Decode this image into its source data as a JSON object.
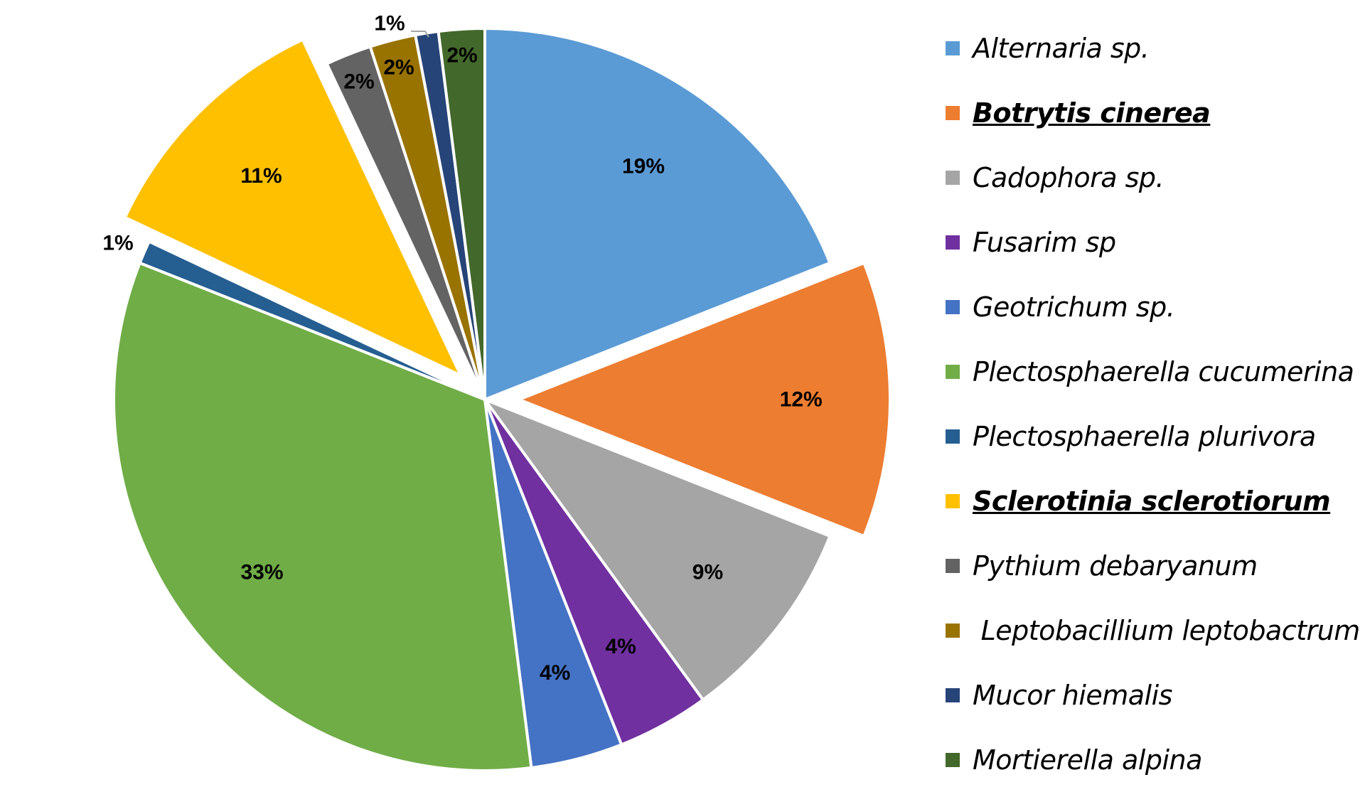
{
  "chart_data": {
    "type": "pie",
    "title": "",
    "start_angle_deg": 0,
    "direction": "clockwise",
    "slices": [
      {
        "label": "Alternaria sp.",
        "value": 19,
        "display": "19%",
        "color": "#5B9BD5",
        "exploded": false,
        "emphasized": false
      },
      {
        "label": "Botrytis cinerea",
        "value": 12,
        "display": "12%",
        "color": "#ED7D31",
        "exploded": true,
        "emphasized": true
      },
      {
        "label": "Cadophora sp.",
        "value": 9,
        "display": "9%",
        "color": "#A5A5A5",
        "exploded": false,
        "emphasized": false
      },
      {
        "label": "Fusarim sp",
        "value": 4,
        "display": "4%",
        "color": "#7030A0",
        "exploded": false,
        "emphasized": false
      },
      {
        "label": "Geotrichum sp.",
        "value": 4,
        "display": "4%",
        "color": "#4472C4",
        "exploded": false,
        "emphasized": false
      },
      {
        "label": "Plectosphaerella cucumerina",
        "value": 33,
        "display": "33%",
        "color": "#70AD47",
        "exploded": false,
        "emphasized": false
      },
      {
        "label": "Plectosphaerella plurivora",
        "value": 1,
        "display": "1%",
        "color": "#255E91",
        "exploded": false,
        "emphasized": false
      },
      {
        "label": "Sclerotinia sclerotiorum",
        "value": 11,
        "display": "11%",
        "color": "#FFC000",
        "exploded": true,
        "emphasized": true
      },
      {
        "label": "Pythium debaryanum",
        "value": 2,
        "display": "2%",
        "color": "#636363",
        "exploded": false,
        "emphasized": false
      },
      {
        "label": " Leptobacillium leptobactrum",
        "value": 2,
        "display": "2%",
        "color": "#997300",
        "exploded": false,
        "emphasized": false
      },
      {
        "label": "Mucor hiemalis",
        "value": 1,
        "display": "1%",
        "color": "#264478",
        "exploded": false,
        "emphasized": false
      },
      {
        "label": "Mortierella alpina",
        "value": 2,
        "display": "2%",
        "color": "#43682B",
        "exploded": false,
        "emphasized": false
      }
    ],
    "legend_position": "right",
    "data_labels": "percent"
  }
}
